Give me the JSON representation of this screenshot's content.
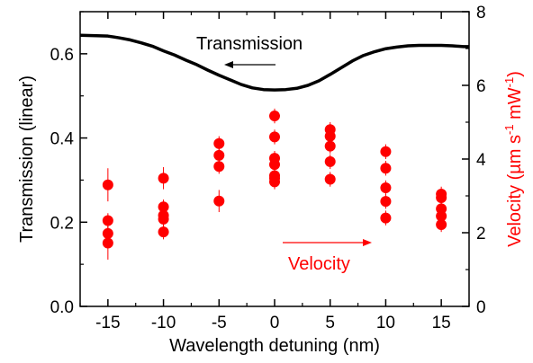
{
  "chart_data": {
    "type": "scatter",
    "title": "",
    "xlabel": "Wavelength detuning (nm)",
    "ylabel_left": "Transmission (linear)",
    "ylabel_right_main": "Velocity (",
    "ylabel_right_unit": "µm s",
    "ylabel_right_exp1": "-1",
    "ylabel_right_unit2": " mW",
    "ylabel_right_exp2": "-1",
    "ylabel_right_close": ")",
    "xlim": [
      -17.5,
      17.5
    ],
    "ylim_left": [
      0.0,
      0.7
    ],
    "ylim_right": [
      0,
      8
    ],
    "x_ticks": [
      -15,
      -10,
      -5,
      0,
      5,
      10,
      15
    ],
    "x_tick_labels": [
      "-15",
      "-10",
      "-5",
      "0",
      "5",
      "10",
      "15"
    ],
    "y_left_ticks": [
      0.0,
      0.2,
      0.4,
      0.6
    ],
    "y_left_tick_labels": [
      "0.0",
      "0.2",
      "0.4",
      "0.6"
    ],
    "y_right_ticks": [
      0,
      2,
      4,
      6,
      8
    ],
    "y_right_tick_labels": [
      "0",
      "2",
      "4",
      "6",
      "8"
    ],
    "grid": false,
    "colors": {
      "transmission": "#000000",
      "velocity": "#ff0000"
    },
    "annotations": [
      {
        "text": "Transmission",
        "color": "#000000",
        "arrow": "left",
        "axis": "left"
      },
      {
        "text": "Velocity",
        "color": "#ff0000",
        "arrow": "right",
        "axis": "right"
      }
    ],
    "series": [
      {
        "axis": "left",
        "kind": "line",
        "x": [
          -17.5,
          -16,
          -15,
          -14,
          -13,
          -12,
          -11,
          -10,
          -9,
          -8,
          -7,
          -6,
          -5,
          -4,
          -3,
          -2,
          -1,
          0,
          1,
          2,
          3,
          4,
          5,
          6,
          7,
          8,
          9,
          10,
          11,
          12,
          13,
          14,
          15,
          16,
          17,
          17.5
        ],
        "y": [
          0.644,
          0.643,
          0.642,
          0.638,
          0.633,
          0.626,
          0.618,
          0.607,
          0.597,
          0.585,
          0.574,
          0.561,
          0.549,
          0.538,
          0.527,
          0.519,
          0.515,
          0.514,
          0.515,
          0.518,
          0.525,
          0.536,
          0.551,
          0.567,
          0.583,
          0.596,
          0.605,
          0.612,
          0.616,
          0.619,
          0.62,
          0.62,
          0.62,
          0.619,
          0.617,
          0.617
        ]
      },
      {
        "axis": "right",
        "kind": "points",
        "points": [
          {
            "x": -15,
            "y": 3.3,
            "err": 0.45
          },
          {
            "x": -15,
            "y": 2.33,
            "err": 0.2
          },
          {
            "x": -15,
            "y": 1.98,
            "err": 0.2
          },
          {
            "x": -15,
            "y": 1.72,
            "err": 0.45
          },
          {
            "x": -10,
            "y": 3.48,
            "err": 0.3
          },
          {
            "x": -10,
            "y": 2.7,
            "err": 0.2
          },
          {
            "x": -10,
            "y": 2.47,
            "err": 0.2
          },
          {
            "x": -10,
            "y": 2.37,
            "err": 0.2
          },
          {
            "x": -10,
            "y": 2.02,
            "err": 0.2
          },
          {
            "x": -5,
            "y": 4.42,
            "err": 0.2
          },
          {
            "x": -5,
            "y": 4.1,
            "err": 0.2
          },
          {
            "x": -5,
            "y": 3.8,
            "err": 0.2
          },
          {
            "x": -5,
            "y": 2.86,
            "err": 0.3
          },
          {
            "x": 0,
            "y": 5.17,
            "err": 0.2
          },
          {
            "x": 0,
            "y": 4.6,
            "err": 0.2
          },
          {
            "x": 0,
            "y": 4.02,
            "err": 0.2
          },
          {
            "x": 0,
            "y": 3.85,
            "err": 0.2
          },
          {
            "x": 0,
            "y": 3.55,
            "err": 0.2
          },
          {
            "x": 0,
            "y": 3.48,
            "err": 0.2
          },
          {
            "x": 0,
            "y": 3.38,
            "err": 0.2
          },
          {
            "x": 5,
            "y": 4.8,
            "err": 0.2
          },
          {
            "x": 5,
            "y": 4.62,
            "err": 0.2
          },
          {
            "x": 5,
            "y": 4.35,
            "err": 0.2
          },
          {
            "x": 5,
            "y": 3.93,
            "err": 0.2
          },
          {
            "x": 5,
            "y": 3.45,
            "err": 0.2
          },
          {
            "x": 10,
            "y": 4.2,
            "err": 0.2
          },
          {
            "x": 10,
            "y": 3.75,
            "err": 0.2
          },
          {
            "x": 10,
            "y": 3.22,
            "err": 0.2
          },
          {
            "x": 10,
            "y": 2.85,
            "err": 0.2
          },
          {
            "x": 10,
            "y": 2.4,
            "err": 0.2
          },
          {
            "x": 15,
            "y": 3.05,
            "err": 0.2
          },
          {
            "x": 15,
            "y": 2.95,
            "err": 0.2
          },
          {
            "x": 15,
            "y": 2.65,
            "err": 0.2
          },
          {
            "x": 15,
            "y": 2.45,
            "err": 0.2
          },
          {
            "x": 15,
            "y": 2.22,
            "err": 0.2
          }
        ]
      }
    ]
  }
}
